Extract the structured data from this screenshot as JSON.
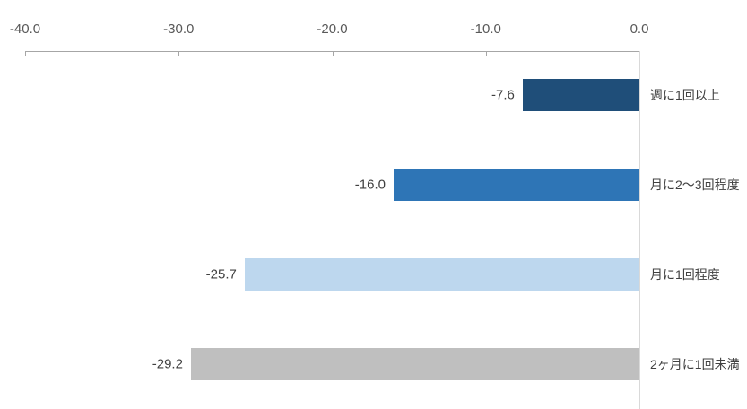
{
  "chart_data": {
    "type": "bar",
    "orientation": "horizontal",
    "title": "",
    "xlabel": "",
    "ylabel": "",
    "categories": [
      "週に1回以上",
      "月に2〜3回程度",
      "月に1回程度",
      "2ヶ月に1回未満"
    ],
    "values": [
      -7.6,
      -16.0,
      -25.7,
      -29.2
    ],
    "data_labels": [
      "-7.6",
      "-16.0",
      "-25.7",
      "-29.2"
    ],
    "bar_colors": [
      "#1F4E79",
      "#2E75B6",
      "#BDD7EE",
      "#BFBFBF"
    ],
    "axis": {
      "position": "top",
      "min": -40,
      "max": 0,
      "tick_labels": [
        "-40.0",
        "-30.0",
        "-20.0",
        "-10.0",
        "0.0"
      ],
      "tick_values": [
        -40,
        -30,
        -20,
        -10,
        0
      ]
    },
    "grid": false,
    "legend": false,
    "colors": {
      "axis_line": "#A6A6A6",
      "zero_baseline": "#D9D9D9",
      "tick_text": "#595959",
      "label_text": "#404040",
      "background": "#FFFFFF"
    }
  }
}
